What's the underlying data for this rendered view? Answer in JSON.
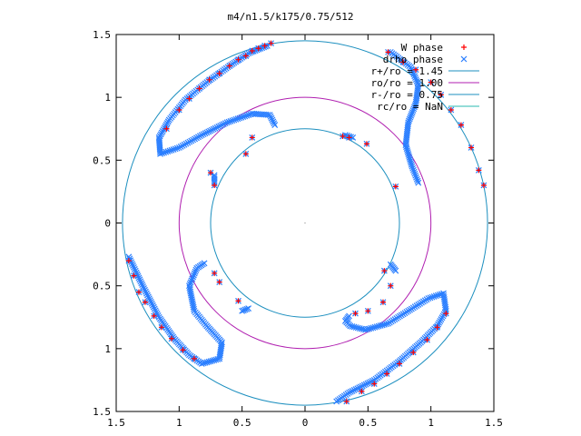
{
  "chart_data": {
    "type": "scatter",
    "title": "m4/n1.5/k175/0.75/512",
    "xlabel": "",
    "ylabel": "",
    "xlim": [
      -1.5,
      1.5
    ],
    "ylim": [
      -1.5,
      1.5
    ],
    "x_ticks": [
      -1.5,
      -1,
      -0.5,
      0,
      0.5,
      1,
      1.5
    ],
    "y_ticks": [
      -1.5,
      -1,
      -0.5,
      0,
      0.5,
      1,
      1.5
    ],
    "x_tick_labels": [
      "1.5",
      "1",
      "0.5",
      "0",
      "0.5",
      "1",
      "1.5"
    ],
    "y_tick_labels": [
      "1.5",
      "1",
      "0.5",
      "0",
      "0.5",
      "1",
      "1.5"
    ],
    "grid": false,
    "legend_position": "top-right",
    "series": [
      {
        "name": "W phase",
        "marker": "plus",
        "color": "#ff0000",
        "points": [
          [
            -0.27,
            1.43
          ],
          [
            -0.32,
            1.41
          ],
          [
            -0.37,
            1.39
          ],
          [
            -0.42,
            1.37
          ],
          [
            -0.47,
            1.33
          ],
          [
            -0.53,
            1.3
          ],
          [
            -0.6,
            1.25
          ],
          [
            -0.68,
            1.19
          ],
          [
            -0.76,
            1.14
          ],
          [
            -0.84,
            1.07
          ],
          [
            -0.92,
            0.99
          ],
          [
            -1.0,
            0.9
          ],
          [
            -1.1,
            0.75
          ],
          [
            0.66,
            1.36
          ],
          [
            0.78,
            1.28
          ],
          [
            0.88,
            1.22
          ],
          [
            1.0,
            1.12
          ],
          [
            1.08,
            1.02
          ],
          [
            1.16,
            0.9
          ],
          [
            1.24,
            0.78
          ],
          [
            1.32,
            0.6
          ],
          [
            1.38,
            0.42
          ],
          [
            1.42,
            0.3
          ],
          [
            0.3,
            0.69
          ],
          [
            0.35,
            0.68
          ],
          [
            0.49,
            0.63
          ],
          [
            0.72,
            0.29
          ],
          [
            -0.75,
            0.4
          ],
          [
            -0.72,
            0.3
          ],
          [
            -0.47,
            0.55
          ],
          [
            -0.42,
            0.68
          ],
          [
            -1.4,
            -0.3
          ],
          [
            -1.36,
            -0.42
          ],
          [
            -1.32,
            -0.55
          ],
          [
            -1.27,
            -0.63
          ],
          [
            -1.2,
            -0.74
          ],
          [
            -1.14,
            -0.83
          ],
          [
            -1.06,
            -0.92
          ],
          [
            -0.97,
            -1.01
          ],
          [
            -0.88,
            -1.08
          ],
          [
            -0.72,
            -0.4
          ],
          [
            -0.68,
            -0.47
          ],
          [
            -0.53,
            -0.62
          ],
          [
            0.33,
            -1.42
          ],
          [
            0.45,
            -1.34
          ],
          [
            0.55,
            -1.28
          ],
          [
            0.65,
            -1.2
          ],
          [
            0.75,
            -1.12
          ],
          [
            0.86,
            -1.03
          ],
          [
            0.97,
            -0.93
          ],
          [
            1.05,
            -0.83
          ],
          [
            1.12,
            -0.72
          ],
          [
            0.4,
            -0.72
          ],
          [
            0.5,
            -0.7
          ],
          [
            0.62,
            -0.63
          ],
          [
            0.68,
            -0.5
          ],
          [
            0.63,
            -0.38
          ]
        ]
      },
      {
        "name": "drho phase",
        "marker": "cross",
        "color": "#2b7fff",
        "points": [
          [
            -0.27,
            1.43
          ],
          [
            -0.32,
            1.41
          ],
          [
            -0.37,
            1.39
          ],
          [
            -0.42,
            1.37
          ],
          [
            -0.47,
            1.33
          ],
          [
            -0.53,
            1.3
          ],
          [
            -0.6,
            1.25
          ],
          [
            -0.68,
            1.19
          ],
          [
            -0.76,
            1.14
          ],
          [
            -0.84,
            1.07
          ],
          [
            -0.92,
            0.99
          ],
          [
            -1.0,
            0.9
          ],
          [
            -1.1,
            0.75
          ],
          [
            0.66,
            1.36
          ],
          [
            0.78,
            1.28
          ],
          [
            0.88,
            1.22
          ],
          [
            1.0,
            1.12
          ],
          [
            1.08,
            1.02
          ],
          [
            1.16,
            0.9
          ],
          [
            1.24,
            0.78
          ],
          [
            1.32,
            0.6
          ],
          [
            1.38,
            0.42
          ],
          [
            1.42,
            0.3
          ],
          [
            0.3,
            0.69
          ],
          [
            0.35,
            0.68
          ],
          [
            0.49,
            0.63
          ],
          [
            0.72,
            0.29
          ],
          [
            -0.75,
            0.4
          ],
          [
            -0.72,
            0.3
          ],
          [
            -0.47,
            0.55
          ],
          [
            -0.42,
            0.68
          ],
          [
            -1.4,
            -0.3
          ],
          [
            -1.36,
            -0.42
          ],
          [
            -1.32,
            -0.55
          ],
          [
            -1.27,
            -0.63
          ],
          [
            -1.2,
            -0.74
          ],
          [
            -1.14,
            -0.83
          ],
          [
            -1.06,
            -0.92
          ],
          [
            -0.97,
            -1.01
          ],
          [
            -0.88,
            -1.08
          ],
          [
            -0.72,
            -0.4
          ],
          [
            -0.68,
            -0.47
          ],
          [
            -0.53,
            -0.62
          ],
          [
            0.33,
            -1.42
          ],
          [
            0.45,
            -1.34
          ],
          [
            0.55,
            -1.28
          ],
          [
            0.65,
            -1.2
          ],
          [
            0.75,
            -1.12
          ],
          [
            0.86,
            -1.03
          ],
          [
            0.97,
            -0.93
          ],
          [
            1.05,
            -0.83
          ],
          [
            1.12,
            -0.72
          ],
          [
            0.4,
            -0.72
          ],
          [
            0.5,
            -0.7
          ],
          [
            0.62,
            -0.63
          ],
          [
            0.68,
            -0.5
          ],
          [
            0.63,
            -0.38
          ]
        ],
        "dense_arms": [
          [
            [
              -0.3,
              1.41
            ],
            [
              -0.45,
              1.35
            ],
            [
              -0.6,
              1.25
            ],
            [
              -0.78,
              1.12
            ],
            [
              -0.95,
              0.98
            ],
            [
              -1.08,
              0.82
            ],
            [
              -1.16,
              0.68
            ],
            [
              -1.15,
              0.55
            ],
            [
              -1.0,
              0.6
            ],
            [
              -0.82,
              0.7
            ],
            [
              -0.62,
              0.8
            ],
            [
              -0.42,
              0.87
            ],
            [
              -0.28,
              0.86
            ],
            [
              -0.24,
              0.78
            ]
          ],
          [
            [
              0.68,
              1.36
            ],
            [
              0.84,
              1.24
            ],
            [
              0.9,
              1.1
            ],
            [
              0.88,
              0.95
            ],
            [
              0.82,
              0.8
            ],
            [
              0.8,
              0.62
            ],
            [
              0.85,
              0.45
            ],
            [
              0.9,
              0.32
            ]
          ],
          [
            [
              0.32,
              0.7
            ],
            [
              0.38,
              0.68
            ]
          ],
          [
            [
              -0.72,
              0.38
            ],
            [
              -0.72,
              0.32
            ]
          ],
          [
            [
              -1.4,
              -0.27
            ],
            [
              -1.28,
              -0.52
            ],
            [
              -1.16,
              -0.75
            ],
            [
              -1.04,
              -0.92
            ],
            [
              -0.92,
              -1.05
            ],
            [
              -0.82,
              -1.12
            ],
            [
              -0.68,
              -1.08
            ],
            [
              -0.66,
              -0.95
            ],
            [
              -0.78,
              -0.82
            ],
            [
              -0.88,
              -0.7
            ],
            [
              -0.92,
              -0.5
            ],
            [
              -0.86,
              -0.36
            ],
            [
              -0.8,
              -0.32
            ]
          ],
          [
            [
              -0.45,
              -0.68
            ],
            [
              -0.5,
              -0.7
            ]
          ],
          [
            [
              0.25,
              -1.42
            ],
            [
              0.35,
              -1.35
            ],
            [
              0.55,
              -1.25
            ],
            [
              0.75,
              -1.1
            ],
            [
              0.92,
              -0.95
            ],
            [
              1.05,
              -0.82
            ],
            [
              1.12,
              -0.7
            ],
            [
              1.1,
              -0.56
            ],
            [
              0.98,
              -0.6
            ],
            [
              0.82,
              -0.7
            ],
            [
              0.66,
              -0.8
            ],
            [
              0.48,
              -0.85
            ],
            [
              0.36,
              -0.82
            ],
            [
              0.32,
              -0.78
            ],
            [
              0.35,
              -0.74
            ]
          ],
          [
            [
              0.68,
              -0.33
            ],
            [
              0.72,
              -0.38
            ]
          ]
        ]
      }
    ],
    "circles": [
      {
        "name": "r+/ro = 1.45",
        "radius": 1.45,
        "color": "#1c8fbf"
      },
      {
        "name": "ro/ro = 1.00",
        "radius": 1.0,
        "color": "#b01fb0"
      },
      {
        "name": "r-/ro = 0.75",
        "radius": 0.75,
        "color": "#1c8fbf"
      },
      {
        "name": "rc/ro = NaN",
        "radius": null,
        "color": "#2ab8b0"
      }
    ]
  },
  "legend": [
    {
      "label": "W phase",
      "symbol": "plus",
      "color": "#ff0000"
    },
    {
      "label": "drho phase",
      "symbol": "cross",
      "color": "#2b7fff"
    },
    {
      "label": "r+/ro = 1.45",
      "symbol": "line",
      "color": "#1c8fbf"
    },
    {
      "label": "ro/ro = 1.00",
      "symbol": "line",
      "color": "#b01fb0"
    },
    {
      "label": "r-/ro = 0.75",
      "symbol": "line",
      "color": "#1c8fbf"
    },
    {
      "label": "rc/ro = NaN",
      "symbol": "line",
      "color": "#2ab8b0"
    }
  ]
}
